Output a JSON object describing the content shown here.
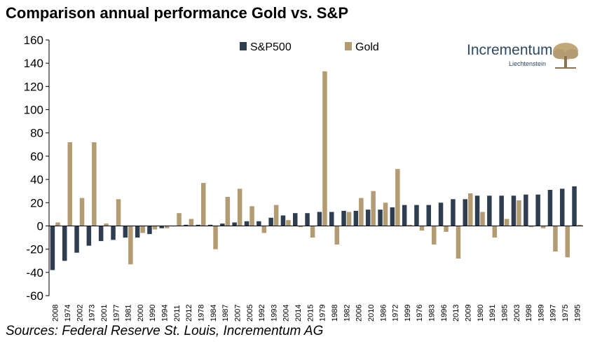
{
  "title": "Comparison annual performance Gold vs. S&P",
  "source": "Sources: Federal Reserve St. Louis, Incrementum AG",
  "logo": {
    "name": "Incrementum",
    "subtitle": "Liechtenstein"
  },
  "colors": {
    "sp500": "#2e3e50",
    "gold": "#b39b72",
    "axis": "#000000"
  },
  "chart_data": {
    "type": "bar",
    "title": "Comparison annual performance Gold vs. S&P",
    "xlabel": "",
    "ylabel": "",
    "ylim": [
      -60,
      160
    ],
    "yticks": [
      160,
      140,
      120,
      100,
      80,
      60,
      40,
      20,
      0,
      -20,
      -40,
      -60
    ],
    "grid": false,
    "legend_position": "top-center",
    "categories": [
      "2008",
      "1974",
      "2002",
      "1973",
      "2001",
      "1977",
      "1981",
      "2000",
      "1990",
      "1994",
      "2011",
      "2012",
      "1978",
      "1984",
      "1987",
      "2007",
      "2005",
      "1992",
      "1993",
      "2004",
      "2014",
      "2015",
      "1979",
      "1988",
      "1982",
      "2006",
      "2010",
      "1986",
      "1972",
      "1999",
      "1976",
      "1983",
      "1996",
      "2013",
      "2009",
      "1980",
      "1991",
      "1985",
      "2003",
      "1998",
      "1989",
      "1997",
      "1975",
      "1995"
    ],
    "series": [
      {
        "name": "S&P500",
        "values": [
          -38,
          -30,
          -23,
          -17,
          -13,
          -12,
          -10,
          -10,
          -7,
          -2,
          0,
          1,
          1,
          1,
          2,
          3,
          4,
          4,
          7,
          9,
          11,
          11,
          12,
          12,
          13,
          13,
          14,
          14,
          16,
          18,
          18,
          18,
          20,
          23,
          23,
          26,
          26,
          26,
          26,
          27,
          27,
          31,
          32,
          34
        ]
      },
      {
        "name": "Gold",
        "values": [
          3,
          72,
          24,
          72,
          2,
          23,
          -33,
          -6,
          -3,
          -2,
          11,
          6,
          37,
          -20,
          25,
          32,
          17,
          -6,
          18,
          5,
          -1,
          -10,
          133,
          -16,
          12,
          24,
          30,
          20,
          49,
          1,
          -4,
          -16,
          -5,
          -28,
          28,
          12,
          -10,
          6,
          22,
          -1,
          -2,
          -22,
          -27,
          1
        ]
      }
    ]
  }
}
